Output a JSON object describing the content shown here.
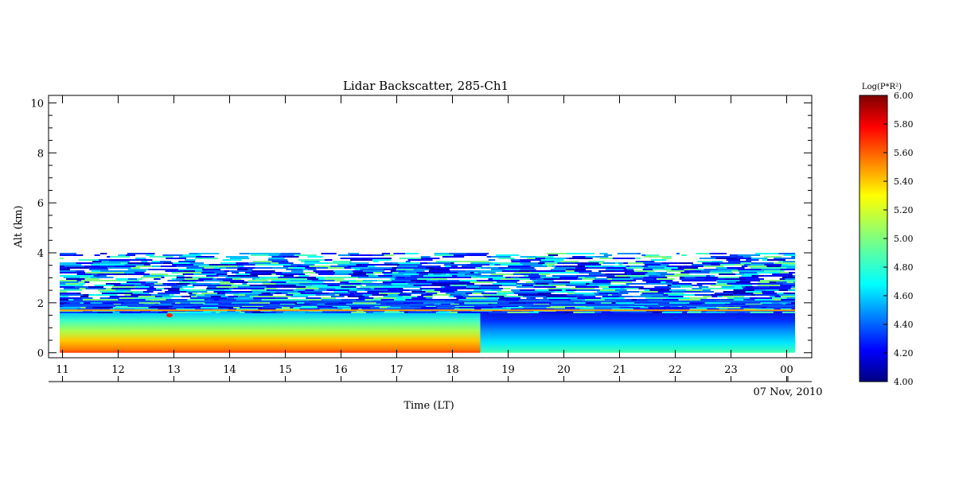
{
  "chart_data": {
    "type": "heatmap",
    "title": "Lidar Backscatter, 285-Ch1",
    "xlabel": "Time (LT)",
    "ylabel": "Alt (km)",
    "date_label": "07 Nov, 2010",
    "x_ticks": [
      "11",
      "12",
      "13",
      "14",
      "15",
      "16",
      "17",
      "18",
      "19",
      "20",
      "21",
      "22",
      "23",
      "00"
    ],
    "x_tick_hours": [
      11,
      12,
      13,
      14,
      15,
      16,
      17,
      18,
      19,
      20,
      21,
      22,
      23,
      24
    ],
    "xlim": [
      10.75,
      24.45
    ],
    "y_ticks": [
      "0",
      "2",
      "4",
      "6",
      "8",
      "10"
    ],
    "y_tick_values": [
      0,
      2,
      4,
      6,
      8,
      10
    ],
    "ylim": [
      -0.2,
      10.3
    ],
    "data_time_range": [
      10.95,
      24.15
    ],
    "data_alt_range": [
      0,
      4.0
    ],
    "regions": [
      {
        "time": [
          10.95,
          18.5
        ],
        "alt": [
          0,
          0.15
        ],
        "log_pr2": 5.62
      },
      {
        "time": [
          10.95,
          18.5
        ],
        "alt": [
          0.15,
          0.5
        ],
        "log_pr2": 5.45
      },
      {
        "time": [
          10.95,
          18.5
        ],
        "alt": [
          0.5,
          1.0
        ],
        "log_pr2": 5.2
      },
      {
        "time": [
          10.95,
          18.5
        ],
        "alt": [
          1.0,
          1.6
        ],
        "log_pr2": 4.85
      },
      {
        "time": [
          18.5,
          24.15
        ],
        "alt": [
          0,
          0.3
        ],
        "log_pr2": 4.9
      },
      {
        "time": [
          18.5,
          24.15
        ],
        "alt": [
          0.3,
          1.0
        ],
        "log_pr2": 4.65
      },
      {
        "time": [
          18.5,
          24.15
        ],
        "alt": [
          1.0,
          1.6
        ],
        "log_pr2": 4.35
      },
      {
        "time": [
          10.95,
          24.15
        ],
        "alt": [
          1.6,
          4.0
        ],
        "log_pr2": 4.4,
        "note": "noisy"
      }
    ],
    "colorbar": {
      "label": "Log(P*R²)",
      "min": 4.0,
      "max": 6.0,
      "ticks": [
        "4.00",
        "4.20",
        "4.40",
        "4.60",
        "4.80",
        "5.00",
        "5.20",
        "5.40",
        "5.60",
        "5.80",
        "6.00"
      ],
      "colormap": "jet"
    },
    "colors": {
      "jet": [
        "#00007f",
        "#0000ff",
        "#007fff",
        "#00ffff",
        "#7fff7f",
        "#ffff00",
        "#ff7f00",
        "#ff0000",
        "#7f0000"
      ]
    }
  }
}
